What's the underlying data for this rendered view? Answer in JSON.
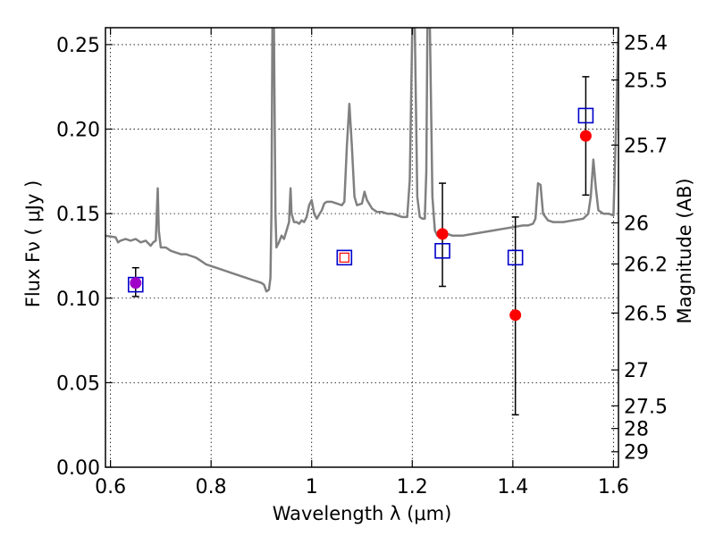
{
  "chart_data": {
    "type": "scatter",
    "title": "",
    "xlabel": "Wavelength  λ (μm)",
    "ylabel": "Flux  Fν  ( μJy )",
    "ylabel_right": "Magnitude (AB)",
    "xlim": [
      0.59,
      1.61
    ],
    "ylim": [
      0.0,
      0.26
    ],
    "xticks": [
      0.6,
      0.8,
      1.0,
      1.2,
      1.4,
      1.6
    ],
    "xtick_labels": [
      "0.6",
      "0.8",
      "1",
      "1.2",
      "1.4",
      "1.6"
    ],
    "yticks": [
      0.0,
      0.05,
      0.1,
      0.15,
      0.2,
      0.25
    ],
    "ytick_labels": [
      "0.00",
      "0.05",
      "0.10",
      "0.15",
      "0.20",
      "0.25"
    ],
    "mag_ticks": [
      {
        "mag": 25.4,
        "label": "25.4"
      },
      {
        "mag": 25.5,
        "label": "25.5"
      },
      {
        "mag": 25.7,
        "label": "25.7"
      },
      {
        "mag": 26.0,
        "label": "26"
      },
      {
        "mag": 26.2,
        "label": "26.2"
      },
      {
        "mag": 26.5,
        "label": "26.5"
      },
      {
        "mag": 27.0,
        "label": "27"
      },
      {
        "mag": 27.5,
        "label": "27.5"
      },
      {
        "mag": 28.0,
        "label": "28"
      },
      {
        "mag": 29.0,
        "label": "29"
      }
    ],
    "grid": true,
    "colors": {
      "spectrum": "#808080",
      "observed": "#ff0000",
      "model": "#0000cc",
      "errorbar": "#000000",
      "grid": "#000000"
    },
    "series": [
      {
        "kind": "line",
        "points": [
          [
            0.59,
            0.137
          ],
          [
            0.61,
            0.136
          ],
          [
            0.615,
            0.133
          ],
          [
            0.62,
            0.134
          ],
          [
            0.63,
            0.135
          ],
          [
            0.64,
            0.134
          ],
          [
            0.65,
            0.135
          ],
          [
            0.66,
            0.133
          ],
          [
            0.67,
            0.134
          ],
          [
            0.68,
            0.131
          ],
          [
            0.685,
            0.133
          ],
          [
            0.69,
            0.134
          ],
          [
            0.692,
            0.15
          ],
          [
            0.694,
            0.165
          ],
          [
            0.696,
            0.14
          ],
          [
            0.7,
            0.13
          ],
          [
            0.71,
            0.13
          ],
          [
            0.72,
            0.128
          ],
          [
            0.73,
            0.127
          ],
          [
            0.74,
            0.126
          ],
          [
            0.75,
            0.126
          ],
          [
            0.76,
            0.125
          ],
          [
            0.77,
            0.124
          ],
          [
            0.78,
            0.122
          ],
          [
            0.79,
            0.12
          ],
          [
            0.8,
            0.119
          ],
          [
            0.81,
            0.118
          ],
          [
            0.82,
            0.117
          ],
          [
            0.83,
            0.116
          ],
          [
            0.84,
            0.115
          ],
          [
            0.85,
            0.114
          ],
          [
            0.86,
            0.113
          ],
          [
            0.87,
            0.112
          ],
          [
            0.88,
            0.111
          ],
          [
            0.89,
            0.11
          ],
          [
            0.9,
            0.109
          ],
          [
            0.905,
            0.108
          ],
          [
            0.91,
            0.104
          ],
          [
            0.915,
            0.105
          ],
          [
            0.918,
            0.112
          ],
          [
            0.92,
            0.15
          ],
          [
            0.922,
            0.26
          ],
          [
            0.925,
            0.26
          ],
          [
            0.928,
            0.15
          ],
          [
            0.93,
            0.13
          ],
          [
            0.935,
            0.133
          ],
          [
            0.94,
            0.137
          ],
          [
            0.945,
            0.135
          ],
          [
            0.95,
            0.14
          ],
          [
            0.955,
            0.145
          ],
          [
            0.958,
            0.165
          ],
          [
            0.96,
            0.15
          ],
          [
            0.965,
            0.145
          ],
          [
            0.97,
            0.145
          ],
          [
            0.975,
            0.144
          ],
          [
            0.98,
            0.146
          ],
          [
            0.985,
            0.145
          ],
          [
            0.99,
            0.148
          ],
          [
            0.995,
            0.155
          ],
          [
            1.0,
            0.158
          ],
          [
            1.005,
            0.15
          ],
          [
            1.01,
            0.147
          ],
          [
            1.02,
            0.152
          ],
          [
            1.025,
            0.156
          ],
          [
            1.03,
            0.157
          ],
          [
            1.04,
            0.157
          ],
          [
            1.05,
            0.156
          ],
          [
            1.06,
            0.155
          ],
          [
            1.065,
            0.157
          ],
          [
            1.07,
            0.19
          ],
          [
            1.075,
            0.215
          ],
          [
            1.08,
            0.19
          ],
          [
            1.085,
            0.16
          ],
          [
            1.09,
            0.155
          ],
          [
            1.1,
            0.156
          ],
          [
            1.105,
            0.163
          ],
          [
            1.11,
            0.158
          ],
          [
            1.12,
            0.153
          ],
          [
            1.13,
            0.151
          ],
          [
            1.14,
            0.151
          ],
          [
            1.15,
            0.15
          ],
          [
            1.16,
            0.15
          ],
          [
            1.17,
            0.149
          ],
          [
            1.18,
            0.148
          ],
          [
            1.19,
            0.148
          ],
          [
            1.195,
            0.17
          ],
          [
            1.2,
            0.26
          ],
          [
            1.205,
            0.26
          ],
          [
            1.21,
            0.16
          ],
          [
            1.215,
            0.148
          ],
          [
            1.22,
            0.147
          ],
          [
            1.225,
            0.147
          ],
          [
            1.228,
            0.175
          ],
          [
            1.23,
            0.26
          ],
          [
            1.235,
            0.26
          ],
          [
            1.238,
            0.2
          ],
          [
            1.24,
            0.16
          ],
          [
            1.245,
            0.14
          ],
          [
            1.25,
            0.137
          ],
          [
            1.26,
            0.137
          ],
          [
            1.27,
            0.138
          ],
          [
            1.28,
            0.137
          ],
          [
            1.29,
            0.137
          ],
          [
            1.3,
            0.137
          ],
          [
            1.32,
            0.138
          ],
          [
            1.34,
            0.139
          ],
          [
            1.36,
            0.14
          ],
          [
            1.38,
            0.141
          ],
          [
            1.4,
            0.142
          ],
          [
            1.42,
            0.143
          ],
          [
            1.43,
            0.143
          ],
          [
            1.44,
            0.144
          ],
          [
            1.445,
            0.147
          ],
          [
            1.45,
            0.168
          ],
          [
            1.455,
            0.167
          ],
          [
            1.46,
            0.15
          ],
          [
            1.47,
            0.146
          ],
          [
            1.48,
            0.145
          ],
          [
            1.5,
            0.145
          ],
          [
            1.52,
            0.146
          ],
          [
            1.54,
            0.147
          ],
          [
            1.55,
            0.15
          ],
          [
            1.555,
            0.16
          ],
          [
            1.56,
            0.182
          ],
          [
            1.565,
            0.165
          ],
          [
            1.57,
            0.152
          ],
          [
            1.58,
            0.15
          ],
          [
            1.59,
            0.15
          ],
          [
            1.6,
            0.149
          ],
          [
            1.605,
            0.2
          ],
          [
            1.61,
            0.26
          ]
        ]
      },
      {
        "kind": "points-with-errors",
        "marker": "filled-circle",
        "points": [
          {
            "x": 0.65,
            "y": 0.109,
            "yerr_low": 0.101,
            "yerr_high": 0.118
          },
          {
            "x": 1.26,
            "y": 0.138,
            "yerr_low": 0.107,
            "yerr_high": 0.168
          },
          {
            "x": 1.405,
            "y": 0.09,
            "yerr_low": 0.031,
            "yerr_high": 0.148
          },
          {
            "x": 1.545,
            "y": 0.196,
            "yerr_low": 0.161,
            "yerr_high": 0.231
          }
        ]
      },
      {
        "kind": "points",
        "marker": "open-square",
        "points": [
          {
            "x": 0.65,
            "y": 0.108
          },
          {
            "x": 1.065,
            "y": 0.124
          },
          {
            "x": 1.26,
            "y": 0.128
          },
          {
            "x": 1.405,
            "y": 0.124
          },
          {
            "x": 1.545,
            "y": 0.208
          }
        ]
      },
      {
        "kind": "points",
        "marker": "open-square-small",
        "points": [
          {
            "x": 1.065,
            "y": 0.124
          }
        ]
      }
    ]
  }
}
